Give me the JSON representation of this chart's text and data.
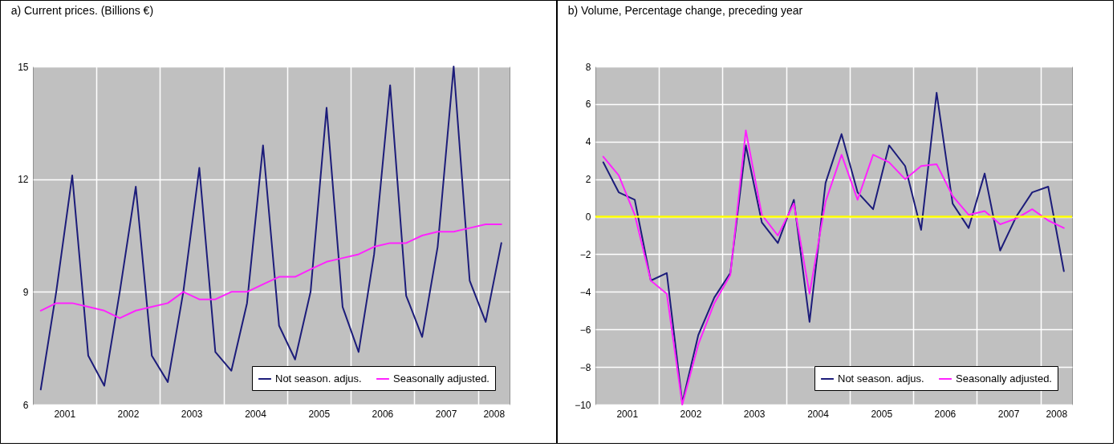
{
  "chart_data": [
    {
      "type": "line",
      "title": "a) Current prices. (Billions €)",
      "x": [
        "2001-02-15",
        "2001-05-15",
        "2001-08-15",
        "2001-11-15",
        "2002-02-15",
        "2002-05-15",
        "2002-08-15",
        "2002-11-15",
        "2003-02-15",
        "2003-05-15",
        "2003-08-15",
        "2003-11-15",
        "2004-02-15",
        "2004-05-15",
        "2004-08-15",
        "2004-11-15",
        "2005-02-15",
        "2005-05-15",
        "2005-08-15",
        "2005-11-15",
        "2006-02-15",
        "2006-05-15",
        "2006-08-15",
        "2006-11-15",
        "2007-02-15",
        "2007-05-15",
        "2007-08-15",
        "2007-11-15",
        "2008-02-15",
        "2008-05-15"
      ],
      "series": [
        {
          "name": "Not season. adjus.",
          "color": "#1c1c7a",
          "values": [
            6.4,
            9.0,
            12.1,
            7.3,
            6.5,
            9.0,
            11.8,
            7.3,
            6.6,
            9.0,
            12.3,
            7.4,
            6.9,
            8.7,
            12.9,
            8.1,
            7.2,
            9.0,
            13.9,
            8.6,
            7.4,
            10.0,
            14.5,
            8.9,
            7.8,
            10.2,
            15.0,
            9.3,
            8.2,
            10.3
          ]
        },
        {
          "name": "Seasonally adjusted.",
          "color": "#ff22ff",
          "values": [
            8.5,
            8.7,
            8.7,
            8.6,
            8.5,
            8.3,
            8.5,
            8.6,
            8.7,
            9.0,
            8.8,
            8.8,
            9.0,
            9.0,
            9.2,
            9.4,
            9.4,
            9.6,
            9.8,
            9.9,
            10.0,
            10.2,
            10.3,
            10.3,
            10.5,
            10.6,
            10.6,
            10.7,
            10.8,
            10.8
          ]
        }
      ],
      "xlim": [
        "2001-01-01",
        "2008-07-01"
      ],
      "xticks": [
        {
          "value": "2001-07-01",
          "label": "2001"
        },
        {
          "value": "2002-01-01",
          "label": null
        },
        {
          "value": "2002-07-01",
          "label": "2002"
        },
        {
          "value": "2003-01-01",
          "label": null
        },
        {
          "value": "2003-07-01",
          "label": "2003"
        },
        {
          "value": "2004-01-01",
          "label": null
        },
        {
          "value": "2004-07-01",
          "label": "2004"
        },
        {
          "value": "2005-01-01",
          "label": null
        },
        {
          "value": "2005-07-01",
          "label": "2005"
        },
        {
          "value": "2006-01-01",
          "label": null
        },
        {
          "value": "2006-07-01",
          "label": "2006"
        },
        {
          "value": "2007-01-01",
          "label": null
        },
        {
          "value": "2007-07-01",
          "label": "2007"
        },
        {
          "value": "2008-01-01",
          "label": null
        },
        {
          "value": "2008-04-01",
          "label": "2008"
        }
      ],
      "ylim": [
        6,
        15
      ],
      "yticks": [
        6,
        9,
        12,
        15
      ],
      "grid": true,
      "legend": "bottom right"
    },
    {
      "type": "line",
      "title": "b) Volume, Percentage change, preceding year",
      "x": [
        "2001-02-15",
        "2001-05-15",
        "2001-08-15",
        "2001-11-15",
        "2002-02-15",
        "2002-05-15",
        "2002-08-15",
        "2002-11-15",
        "2003-02-15",
        "2003-05-15",
        "2003-08-15",
        "2003-11-15",
        "2004-02-15",
        "2004-05-15",
        "2004-08-15",
        "2004-11-15",
        "2005-02-15",
        "2005-05-15",
        "2005-08-15",
        "2005-11-15",
        "2006-02-15",
        "2006-05-15",
        "2006-08-15",
        "2006-11-15",
        "2007-02-15",
        "2007-05-15",
        "2007-08-15",
        "2007-11-15",
        "2008-02-15",
        "2008-05-15"
      ],
      "series": [
        {
          "name": "Not season. adjus.",
          "color": "#1c1c7a",
          "values": [
            2.9,
            1.3,
            0.9,
            -3.4,
            -3.0,
            -9.9,
            -6.3,
            -4.3,
            -3.0,
            3.8,
            -0.3,
            -1.4,
            0.9,
            -5.6,
            1.8,
            4.4,
            1.3,
            0.4,
            3.8,
            2.7,
            -0.7,
            6.6,
            0.7,
            -0.6,
            2.3,
            -1.8,
            0.0,
            1.3,
            1.6,
            -2.9
          ]
        },
        {
          "name": "Seasonally adjusted.",
          "color": "#ff22ff",
          "values": [
            3.2,
            2.2,
            0.1,
            -3.4,
            -4.1,
            -10.0,
            -6.8,
            -4.6,
            -3.1,
            4.6,
            0.1,
            -1.0,
            0.7,
            -4.1,
            0.8,
            3.3,
            0.9,
            3.3,
            2.9,
            2.0,
            2.7,
            2.8,
            1.1,
            0.1,
            0.3,
            -0.4,
            -0.1,
            0.4,
            -0.2,
            -0.6
          ]
        }
      ],
      "xlim": [
        "2001-01-01",
        "2008-07-01"
      ],
      "xticks": [
        {
          "value": "2001-07-01",
          "label": "2001"
        },
        {
          "value": "2002-01-01",
          "label": null
        },
        {
          "value": "2002-07-01",
          "label": "2002"
        },
        {
          "value": "2003-01-01",
          "label": null
        },
        {
          "value": "2003-07-01",
          "label": "2003"
        },
        {
          "value": "2004-01-01",
          "label": null
        },
        {
          "value": "2004-07-01",
          "label": "2004"
        },
        {
          "value": "2005-01-01",
          "label": null
        },
        {
          "value": "2005-07-01",
          "label": "2005"
        },
        {
          "value": "2006-01-01",
          "label": null
        },
        {
          "value": "2006-07-01",
          "label": "2006"
        },
        {
          "value": "2007-01-01",
          "label": null
        },
        {
          "value": "2007-07-01",
          "label": "2007"
        },
        {
          "value": "2008-01-01",
          "label": null
        },
        {
          "value": "2008-04-01",
          "label": "2008"
        }
      ],
      "ylim": [
        -10,
        8
      ],
      "yticks": [
        -10,
        -8,
        -6,
        -4,
        -2,
        0,
        2,
        4,
        6,
        8
      ],
      "grid": true,
      "legend": "bottom right",
      "ref_lines": [
        {
          "axis": "y",
          "value": 0,
          "color": "#ffff00"
        }
      ]
    }
  ]
}
